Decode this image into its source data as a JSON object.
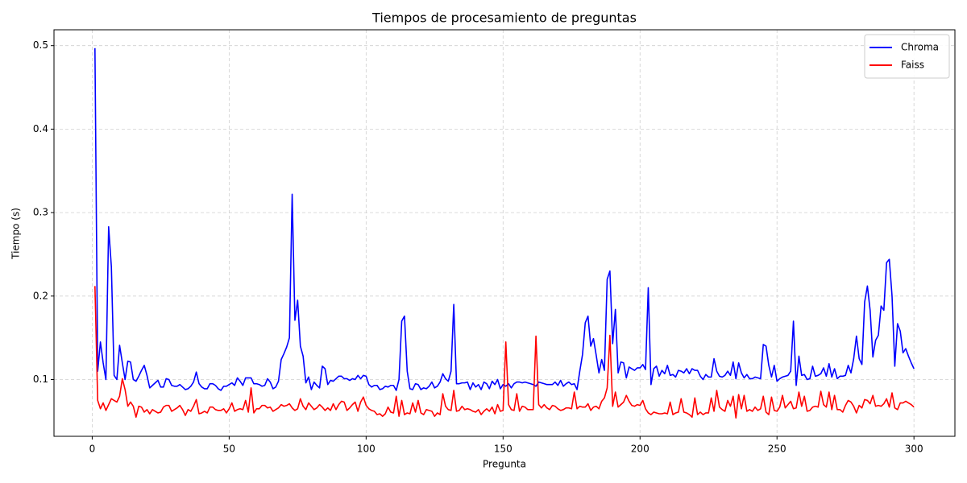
{
  "chart_data": {
    "type": "line",
    "title": "Tiempos de procesamiento de preguntas",
    "x_label": "Pregunta",
    "y_label": "Tiempo (s)",
    "x": [
      1,
      2,
      3,
      4,
      5,
      6,
      7,
      8,
      9,
      10,
      11,
      12,
      13,
      14,
      15,
      16,
      17,
      18,
      19,
      20,
      21,
      22,
      23,
      24,
      25,
      26,
      27,
      28,
      29,
      30,
      31,
      32,
      33,
      34,
      35,
      36,
      37,
      38,
      39,
      40,
      41,
      42,
      43,
      44,
      45,
      46,
      47,
      48,
      49,
      50,
      51,
      52,
      53,
      54,
      55,
      56,
      57,
      58,
      59,
      60,
      61,
      62,
      63,
      64,
      65,
      66,
      67,
      68,
      69,
      70,
      71,
      72,
      73,
      74,
      75,
      76,
      77,
      78,
      79,
      80,
      81,
      82,
      83,
      84,
      85,
      86,
      87,
      88,
      89,
      90,
      91,
      92,
      93,
      94,
      95,
      96,
      97,
      98,
      99,
      100,
      101,
      102,
      103,
      104,
      105,
      106,
      107,
      108,
      109,
      110,
      111,
      112,
      113,
      114,
      115,
      116,
      117,
      118,
      119,
      120,
      121,
      122,
      123,
      124,
      125,
      126,
      127,
      128,
      129,
      130,
      131,
      132,
      133,
      134,
      135,
      136,
      137,
      138,
      139,
      140,
      141,
      142,
      143,
      144,
      145,
      146,
      147,
      148,
      149,
      150,
      151,
      152,
      153,
      154,
      155,
      156,
      157,
      158,
      159,
      160,
      161,
      162,
      163,
      164,
      165,
      166,
      167,
      168,
      169,
      170,
      171,
      172,
      173,
      174,
      175,
      176,
      177,
      178,
      179,
      180,
      181,
      182,
      183,
      184,
      185,
      186,
      187,
      188,
      189,
      190,
      191,
      192,
      193,
      194,
      195,
      196,
      197,
      198,
      199,
      200,
      201,
      202,
      203,
      204,
      205,
      206,
      207,
      208,
      209,
      210,
      211,
      212,
      213,
      214,
      215,
      216,
      217,
      218,
      219,
      220,
      221,
      222,
      223,
      224,
      225,
      226,
      227,
      228,
      229,
      230,
      231,
      232,
      233,
      234,
      235,
      236,
      237,
      238,
      239,
      240,
      241,
      242,
      243,
      244,
      245,
      246,
      247,
      248,
      249,
      250,
      251,
      252,
      253,
      254,
      255,
      256,
      257,
      258,
      259,
      260,
      261,
      262,
      263,
      264,
      265,
      266,
      267,
      268,
      269,
      270,
      271,
      272,
      273,
      274,
      275,
      276,
      277,
      278,
      279,
      280,
      281,
      282,
      283,
      284,
      285,
      286,
      287,
      288,
      289,
      290,
      291,
      292,
      293,
      294,
      295,
      296,
      297,
      298,
      299,
      300
    ],
    "series": [
      {
        "name": "Chroma",
        "color": "#0000ff",
        "values": [
          0.497,
          0.11,
          0.145,
          0.12,
          0.1,
          0.283,
          0.235,
          0.105,
          0.1,
          0.141,
          0.12,
          0.1,
          0.122,
          0.121,
          0.1,
          0.098,
          0.104,
          0.111,
          0.117,
          0.105,
          0.09,
          0.093,
          0.096,
          0.099,
          0.091,
          0.091,
          0.101,
          0.1,
          0.093,
          0.092,
          0.092,
          0.094,
          0.091,
          0.088,
          0.089,
          0.092,
          0.097,
          0.109,
          0.095,
          0.091,
          0.089,
          0.089,
          0.095,
          0.095,
          0.093,
          0.089,
          0.087,
          0.092,
          0.092,
          0.094,
          0.096,
          0.093,
          0.102,
          0.098,
          0.093,
          0.102,
          0.102,
          0.102,
          0.095,
          0.095,
          0.094,
          0.092,
          0.093,
          0.101,
          0.097,
          0.089,
          0.091,
          0.098,
          0.124,
          0.131,
          0.139,
          0.15,
          0.322,
          0.171,
          0.195,
          0.14,
          0.128,
          0.096,
          0.103,
          0.088,
          0.097,
          0.093,
          0.09,
          0.116,
          0.113,
          0.094,
          0.099,
          0.098,
          0.101,
          0.104,
          0.104,
          0.101,
          0.101,
          0.099,
          0.101,
          0.1,
          0.105,
          0.101,
          0.105,
          0.104,
          0.094,
          0.091,
          0.093,
          0.093,
          0.088,
          0.089,
          0.092,
          0.091,
          0.093,
          0.093,
          0.087,
          0.1,
          0.17,
          0.176,
          0.11,
          0.089,
          0.088,
          0.095,
          0.094,
          0.088,
          0.09,
          0.089,
          0.092,
          0.097,
          0.09,
          0.092,
          0.097,
          0.107,
          0.101,
          0.098,
          0.11,
          0.19,
          0.095,
          0.095,
          0.096,
          0.096,
          0.097,
          0.088,
          0.096,
          0.091,
          0.094,
          0.088,
          0.097,
          0.095,
          0.089,
          0.098,
          0.094,
          0.1,
          0.089,
          0.094,
          0.092,
          0.095,
          0.09,
          0.095,
          0.097,
          0.097,
          0.096,
          0.097,
          0.096,
          0.095,
          0.094,
          0.092,
          0.097,
          0.096,
          0.095,
          0.094,
          0.094,
          0.094,
          0.097,
          0.093,
          0.099,
          0.092,
          0.095,
          0.097,
          0.094,
          0.095,
          0.088,
          0.11,
          0.13,
          0.168,
          0.176,
          0.14,
          0.149,
          0.129,
          0.108,
          0.124,
          0.111,
          0.22,
          0.23,
          0.143,
          0.184,
          0.108,
          0.121,
          0.12,
          0.102,
          0.115,
          0.113,
          0.111,
          0.114,
          0.114,
          0.118,
          0.112,
          0.21,
          0.094,
          0.113,
          0.116,
          0.104,
          0.111,
          0.107,
          0.117,
          0.105,
          0.106,
          0.103,
          0.111,
          0.11,
          0.108,
          0.113,
          0.107,
          0.113,
          0.111,
          0.111,
          0.104,
          0.1,
          0.106,
          0.103,
          0.103,
          0.125,
          0.11,
          0.104,
          0.103,
          0.105,
          0.11,
          0.105,
          0.121,
          0.101,
          0.12,
          0.108,
          0.102,
          0.106,
          0.101,
          0.101,
          0.103,
          0.102,
          0.101,
          0.142,
          0.14,
          0.117,
          0.103,
          0.117,
          0.098,
          0.101,
          0.103,
          0.104,
          0.105,
          0.11,
          0.17,
          0.093,
          0.128,
          0.105,
          0.106,
          0.1,
          0.101,
          0.116,
          0.104,
          0.105,
          0.107,
          0.114,
          0.104,
          0.119,
          0.103,
          0.113,
          0.101,
          0.104,
          0.104,
          0.105,
          0.117,
          0.108,
          0.125,
          0.152,
          0.125,
          0.118,
          0.193,
          0.212,
          0.183,
          0.127,
          0.147,
          0.153,
          0.188,
          0.183,
          0.24,
          0.244,
          0.2,
          0.116,
          0.167,
          0.158,
          0.132,
          0.137,
          0.128,
          0.12,
          0.113
        ]
      },
      {
        "name": "Faiss",
        "color": "#ff0000",
        "values": [
          0.212,
          0.075,
          0.065,
          0.072,
          0.063,
          0.07,
          0.077,
          0.075,
          0.073,
          0.08,
          0.101,
          0.088,
          0.068,
          0.073,
          0.068,
          0.055,
          0.068,
          0.067,
          0.061,
          0.064,
          0.059,
          0.064,
          0.062,
          0.06,
          0.061,
          0.067,
          0.069,
          0.069,
          0.062,
          0.064,
          0.066,
          0.069,
          0.064,
          0.057,
          0.064,
          0.062,
          0.068,
          0.076,
          0.059,
          0.06,
          0.062,
          0.06,
          0.067,
          0.067,
          0.064,
          0.063,
          0.063,
          0.065,
          0.06,
          0.065,
          0.072,
          0.062,
          0.064,
          0.065,
          0.064,
          0.075,
          0.061,
          0.09,
          0.06,
          0.065,
          0.065,
          0.069,
          0.069,
          0.066,
          0.067,
          0.062,
          0.064,
          0.066,
          0.07,
          0.068,
          0.069,
          0.071,
          0.066,
          0.063,
          0.065,
          0.077,
          0.068,
          0.064,
          0.072,
          0.068,
          0.064,
          0.066,
          0.07,
          0.067,
          0.063,
          0.066,
          0.063,
          0.071,
          0.064,
          0.07,
          0.074,
          0.073,
          0.063,
          0.066,
          0.07,
          0.073,
          0.062,
          0.073,
          0.079,
          0.069,
          0.065,
          0.063,
          0.062,
          0.058,
          0.059,
          0.056,
          0.059,
          0.067,
          0.061,
          0.06,
          0.08,
          0.056,
          0.075,
          0.058,
          0.06,
          0.059,
          0.072,
          0.061,
          0.075,
          0.06,
          0.058,
          0.064,
          0.063,
          0.062,
          0.056,
          0.06,
          0.058,
          0.083,
          0.068,
          0.064,
          0.063,
          0.087,
          0.062,
          0.063,
          0.068,
          0.064,
          0.065,
          0.064,
          0.062,
          0.061,
          0.064,
          0.058,
          0.062,
          0.065,
          0.062,
          0.067,
          0.059,
          0.07,
          0.062,
          0.063,
          0.145,
          0.07,
          0.064,
          0.063,
          0.083,
          0.062,
          0.068,
          0.067,
          0.064,
          0.064,
          0.064,
          0.152,
          0.07,
          0.066,
          0.07,
          0.066,
          0.064,
          0.069,
          0.068,
          0.065,
          0.063,
          0.064,
          0.066,
          0.066,
          0.065,
          0.085,
          0.065,
          0.068,
          0.067,
          0.067,
          0.071,
          0.063,
          0.067,
          0.068,
          0.065,
          0.074,
          0.078,
          0.09,
          0.153,
          0.068,
          0.085,
          0.067,
          0.07,
          0.073,
          0.081,
          0.074,
          0.069,
          0.068,
          0.07,
          0.069,
          0.075,
          0.065,
          0.06,
          0.058,
          0.061,
          0.06,
          0.059,
          0.059,
          0.06,
          0.059,
          0.073,
          0.058,
          0.06,
          0.061,
          0.077,
          0.061,
          0.06,
          0.058,
          0.055,
          0.078,
          0.058,
          0.061,
          0.058,
          0.06,
          0.06,
          0.078,
          0.062,
          0.087,
          0.067,
          0.064,
          0.062,
          0.075,
          0.068,
          0.08,
          0.054,
          0.082,
          0.065,
          0.081,
          0.062,
          0.064,
          0.062,
          0.067,
          0.063,
          0.065,
          0.08,
          0.061,
          0.058,
          0.079,
          0.063,
          0.062,
          0.067,
          0.081,
          0.066,
          0.07,
          0.074,
          0.065,
          0.066,
          0.085,
          0.068,
          0.08,
          0.062,
          0.063,
          0.067,
          0.068,
          0.067,
          0.086,
          0.07,
          0.067,
          0.085,
          0.064,
          0.081,
          0.064,
          0.064,
          0.061,
          0.069,
          0.075,
          0.073,
          0.068,
          0.06,
          0.069,
          0.066,
          0.076,
          0.075,
          0.071,
          0.081,
          0.068,
          0.069,
          0.068,
          0.071,
          0.077,
          0.067,
          0.084,
          0.066,
          0.064,
          0.072,
          0.072,
          0.074,
          0.072,
          0.07,
          0.067
        ]
      }
    ],
    "xlim": [
      -13.95,
      314.95
    ],
    "xticks": [
      0,
      50,
      100,
      150,
      200,
      250,
      300
    ],
    "ylim": [
      0.032,
      0.519
    ],
    "yticks": [
      0.1,
      0.2,
      0.3,
      0.4,
      0.5
    ],
    "grid": true,
    "legend": "upper right"
  }
}
